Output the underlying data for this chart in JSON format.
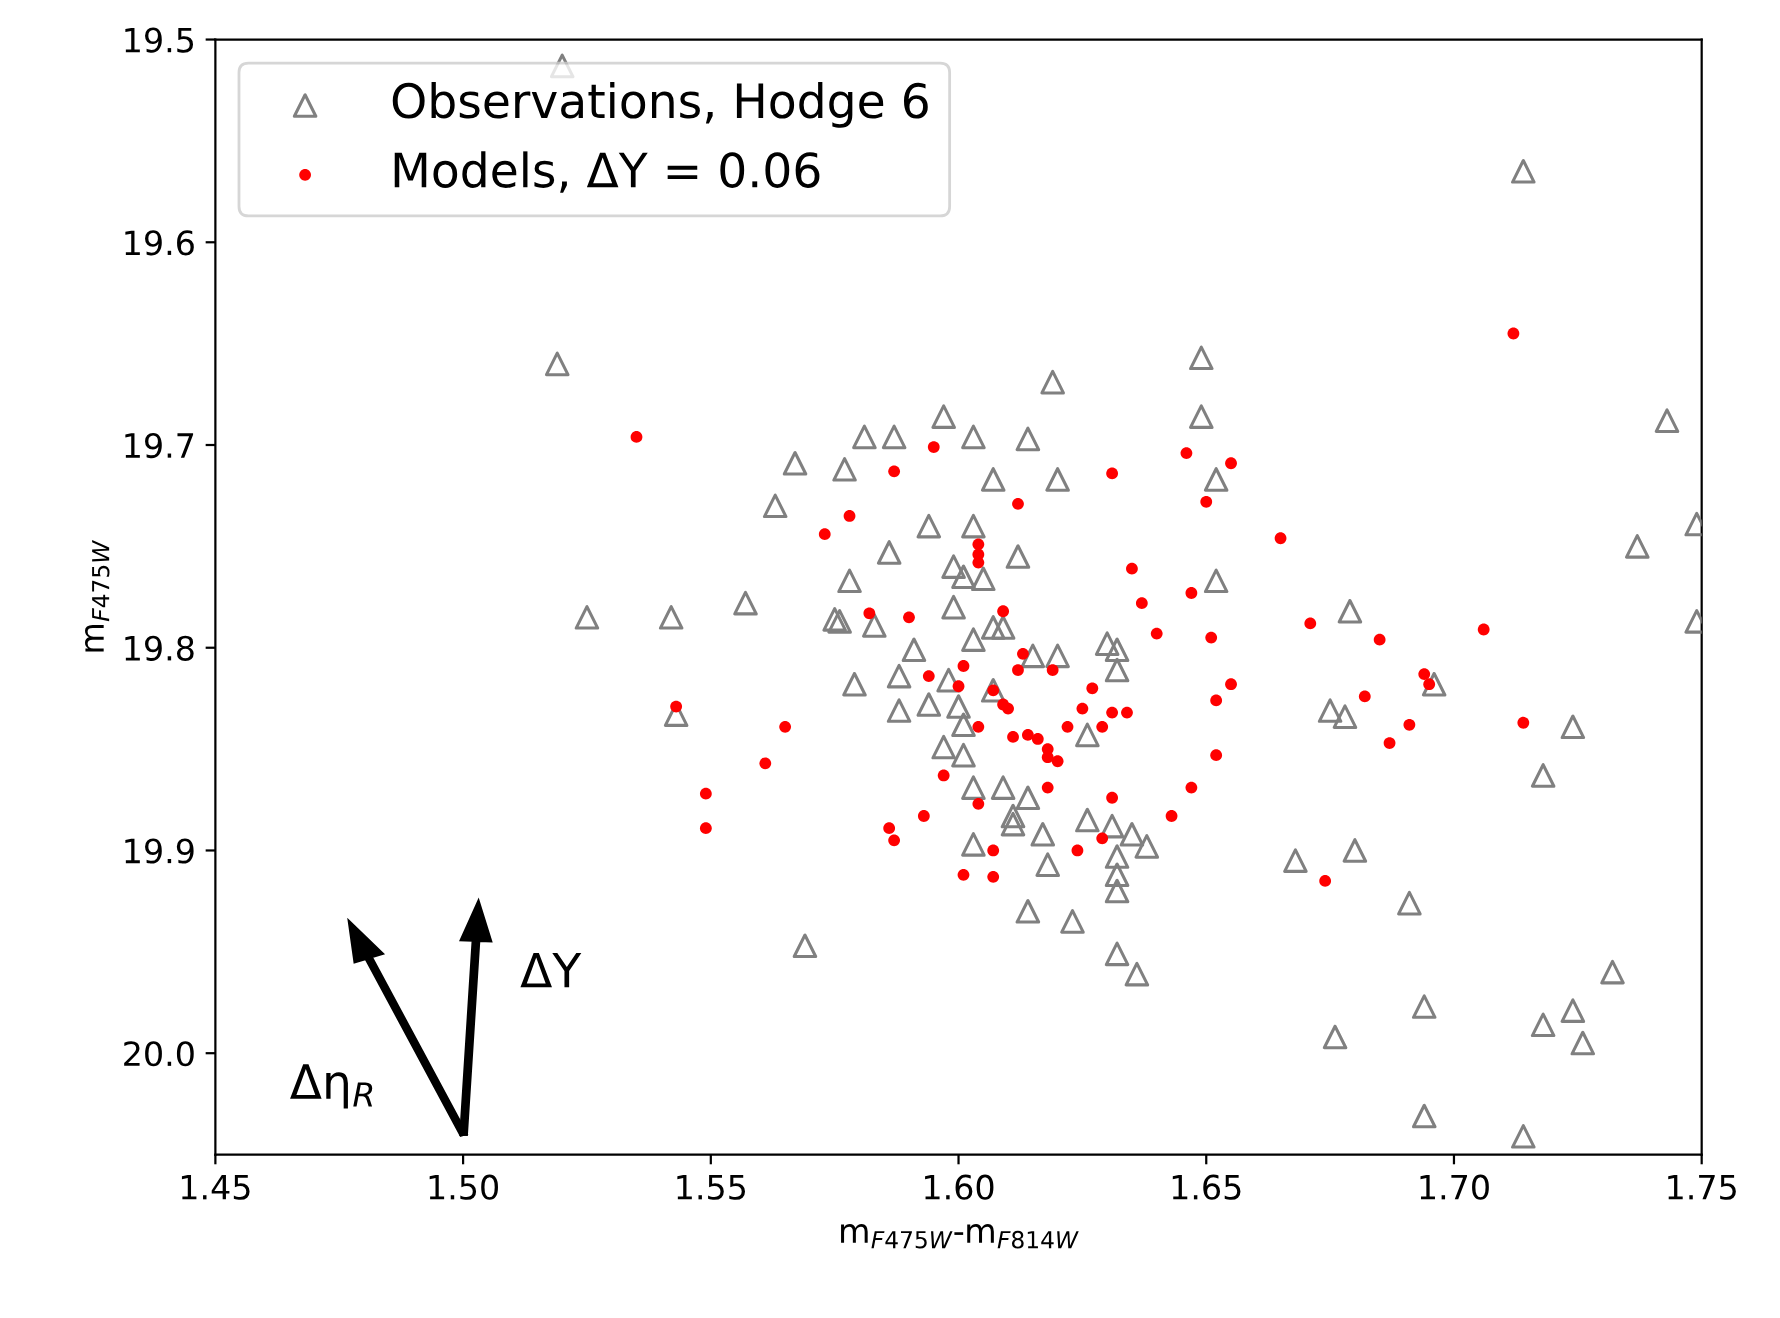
{
  "chart_data": {
    "type": "scatter",
    "xlabel": "m$_{F475W}$-m$_{F814W}$",
    "ylabel": "m$_{F475W}$",
    "xlim": [
      1.45,
      1.75
    ],
    "ylim": [
      20.05,
      19.5
    ],
    "xticks": [
      {
        "value": 1.45,
        "label": "1.45"
      },
      {
        "value": 1.5,
        "label": "1.50"
      },
      {
        "value": 1.55,
        "label": "1.55"
      },
      {
        "value": 1.6,
        "label": "1.60"
      },
      {
        "value": 1.65,
        "label": "1.65"
      },
      {
        "value": 1.7,
        "label": "1.70"
      },
      {
        "value": 1.75,
        "label": "1.75"
      }
    ],
    "yticks": [
      19.5,
      19.6,
      19.7,
      19.8,
      19.9,
      {
        "value": 20.0,
        "label": "20.0"
      }
    ],
    "legend": "top left",
    "annotations": [
      "ΔY",
      "Δη$_{R}$"
    ],
    "series": [
      {
        "name": "Observations, Hodge 6",
        "color": "#808080",
        "marker": "triangle",
        "x": [
          1.519,
          1.581,
          1.587,
          1.567,
          1.577,
          1.563,
          1.586,
          1.578,
          1.525,
          1.542,
          1.557,
          1.575,
          1.576,
          1.583,
          1.588,
          1.579,
          1.588,
          1.543,
          1.569,
          1.52,
          1.649,
          1.619,
          1.649,
          1.597,
          1.603,
          1.614,
          1.607,
          1.62,
          1.652,
          1.594,
          1.603,
          1.612,
          1.599,
          1.601,
          1.605,
          1.652,
          1.599,
          1.607,
          1.609,
          1.603,
          1.591,
          1.63,
          1.632,
          1.615,
          1.62,
          1.632,
          1.598,
          1.594,
          1.6,
          1.607,
          1.601,
          1.626,
          1.597,
          1.601,
          1.603,
          1.609,
          1.614,
          1.611,
          1.611,
          1.626,
          1.631,
          1.617,
          1.603,
          1.635,
          1.638,
          1.632,
          1.618,
          1.632,
          1.632,
          1.614,
          1.623,
          1.632,
          1.636,
          1.675,
          1.678,
          1.679,
          1.668,
          1.68,
          1.714,
          1.743,
          1.737,
          1.749,
          1.749,
          1.696,
          1.724,
          1.718,
          1.691,
          1.732,
          1.694,
          1.724,
          1.718,
          1.726,
          1.676,
          1.694,
          1.714
        ],
        "values": [
          19.66,
          19.696,
          19.696,
          19.709,
          19.712,
          19.73,
          19.753,
          19.767,
          19.785,
          19.785,
          19.778,
          19.786,
          19.787,
          19.789,
          19.814,
          19.818,
          19.831,
          19.833,
          19.947,
          19.513,
          19.657,
          19.669,
          19.686,
          19.686,
          19.696,
          19.697,
          19.717,
          19.717,
          19.717,
          19.74,
          19.74,
          19.755,
          19.76,
          19.765,
          19.766,
          19.767,
          19.78,
          19.79,
          19.79,
          19.796,
          19.801,
          19.798,
          19.801,
          19.804,
          19.804,
          19.811,
          19.816,
          19.828,
          19.829,
          19.821,
          19.838,
          19.843,
          19.849,
          19.853,
          19.869,
          19.869,
          19.874,
          19.883,
          19.887,
          19.885,
          19.888,
          19.892,
          19.897,
          19.892,
          19.898,
          19.903,
          19.907,
          19.912,
          19.92,
          19.93,
          19.935,
          19.951,
          19.961,
          19.831,
          19.834,
          19.782,
          19.905,
          19.9,
          19.565,
          19.688,
          19.75,
          19.739,
          19.787,
          19.818,
          19.839,
          19.863,
          19.926,
          19.96,
          19.977,
          19.979,
          19.986,
          19.995,
          19.992,
          20.031,
          20.041
        ]
      },
      {
        "name": "Models, ΔY = 0.06",
        "color": "#ff0000",
        "marker": "circle",
        "x": [
          1.535,
          1.587,
          1.578,
          1.573,
          1.582,
          1.543,
          1.565,
          1.561,
          1.549,
          1.549,
          1.586,
          1.587,
          1.595,
          1.631,
          1.646,
          1.655,
          1.65,
          1.612,
          1.665,
          1.604,
          1.604,
          1.604,
          1.635,
          1.637,
          1.647,
          1.59,
          1.609,
          1.64,
          1.651,
          1.671,
          1.685,
          1.627,
          1.655,
          1.652,
          1.682,
          1.687,
          1.613,
          1.612,
          1.619,
          1.594,
          1.601,
          1.6,
          1.607,
          1.609,
          1.61,
          1.625,
          1.631,
          1.634,
          1.622,
          1.629,
          1.604,
          1.611,
          1.614,
          1.616,
          1.618,
          1.618,
          1.62,
          1.652,
          1.597,
          1.618,
          1.631,
          1.647,
          1.604,
          1.593,
          1.643,
          1.629,
          1.624,
          1.607,
          1.601,
          1.607,
          1.674,
          1.712,
          1.706,
          1.694,
          1.695,
          1.691,
          1.714
        ],
        "values": [
          19.696,
          19.713,
          19.735,
          19.744,
          19.783,
          19.829,
          19.839,
          19.857,
          19.872,
          19.889,
          19.889,
          19.895,
          19.701,
          19.714,
          19.704,
          19.709,
          19.728,
          19.729,
          19.746,
          19.749,
          19.754,
          19.758,
          19.761,
          19.778,
          19.773,
          19.785,
          19.782,
          19.793,
          19.795,
          19.788,
          19.796,
          19.82,
          19.818,
          19.826,
          19.824,
          19.847,
          19.803,
          19.811,
          19.811,
          19.814,
          19.809,
          19.819,
          19.821,
          19.828,
          19.83,
          19.83,
          19.832,
          19.832,
          19.839,
          19.839,
          19.839,
          19.844,
          19.843,
          19.845,
          19.85,
          19.854,
          19.856,
          19.853,
          19.863,
          19.869,
          19.874,
          19.869,
          19.877,
          19.883,
          19.883,
          19.894,
          19.9,
          19.9,
          19.912,
          19.913,
          19.915,
          19.645,
          19.791,
          19.813,
          19.818,
          19.838,
          19.837
        ]
      }
    ]
  }
}
